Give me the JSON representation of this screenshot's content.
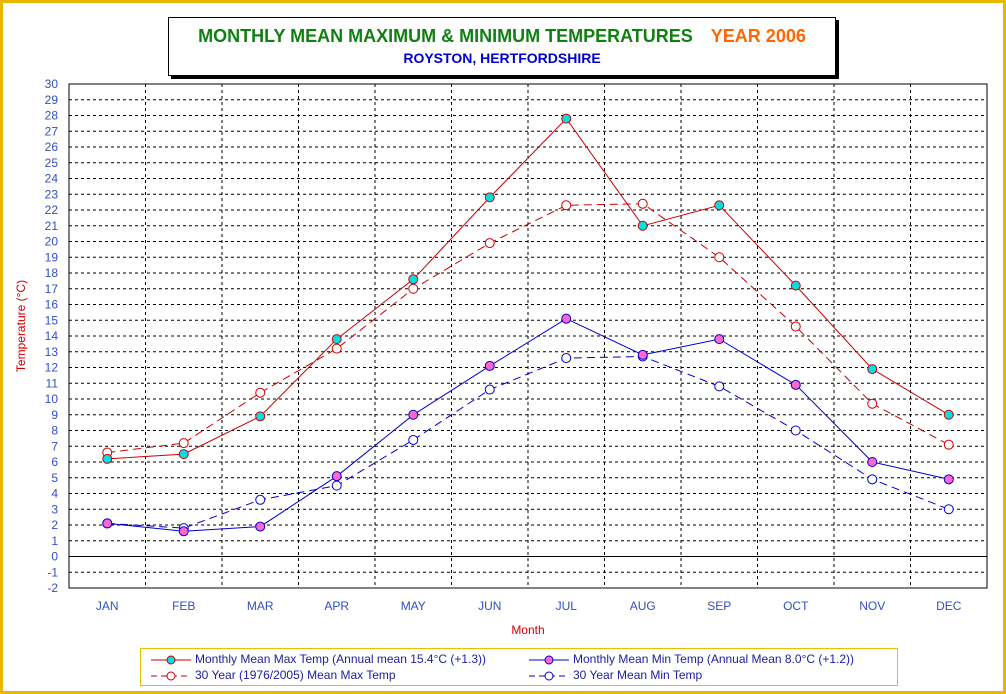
{
  "title": {
    "main": "MONTHLY  MEAN MAXIMUM & MINIMUM TEMPERATURES",
    "year": "YEAR 2006",
    "subtitle": "ROYSTON, HERTFORDSHIRE"
  },
  "colors": {
    "title_main": "#108010",
    "title_year": "#ff6600",
    "subtitle": "#0000cc",
    "max_series": "#cc0000",
    "min_series": "#0000cc",
    "marker_cyan": "#00e0e0",
    "marker_pink": "#ff66cc",
    "frame": "#e8b800",
    "tick_labels": "#3050c0",
    "axis_titles": "#cc0000"
  },
  "chart_data": {
    "type": "line",
    "xlabel": "Month",
    "ylabel": "Temperature (°C)",
    "ylim": [
      -2,
      30
    ],
    "y_ticks": [
      -2,
      -1,
      0,
      1,
      2,
      3,
      4,
      5,
      6,
      7,
      8,
      9,
      10,
      11,
      12,
      13,
      14,
      15,
      16,
      17,
      18,
      19,
      20,
      21,
      22,
      23,
      24,
      25,
      26,
      27,
      28,
      29,
      30
    ],
    "categories": [
      "JAN",
      "FEB",
      "MAR",
      "APR",
      "MAY",
      "JUN",
      "JUL",
      "AUG",
      "SEP",
      "OCT",
      "NOV",
      "DEC"
    ],
    "grid": true,
    "legend_position": "bottom",
    "series": [
      {
        "name": "Monthly Mean Max Temp (Annual mean 15.4°C (+1.3))",
        "style": "solid",
        "color": "#cc0000",
        "marker": "filled-cyan",
        "values": [
          6.2,
          6.5,
          8.9,
          13.8,
          17.6,
          22.8,
          27.8,
          21.0,
          22.3,
          17.2,
          11.9,
          9.0
        ]
      },
      {
        "name": "Monthly Mean Min Temp (Annual Mean 8.0°C (+1.2))",
        "style": "solid",
        "color": "#0000cc",
        "marker": "filled-pink",
        "values": [
          2.1,
          1.6,
          1.9,
          5.1,
          9.0,
          12.1,
          15.1,
          12.8,
          13.8,
          10.9,
          6.0,
          4.9
        ]
      },
      {
        "name": "30 Year (1976/2005) Mean Max Temp",
        "style": "dashed",
        "color": "#cc0000",
        "marker": "open-red",
        "values": [
          6.6,
          7.2,
          10.4,
          13.2,
          17.0,
          19.9,
          22.3,
          22.4,
          19.0,
          14.6,
          9.7,
          7.1
        ]
      },
      {
        "name": "30 Year Mean Min Temp",
        "style": "dashed",
        "color": "#0000cc",
        "marker": "open-blue",
        "values": [
          2.1,
          1.8,
          3.6,
          4.5,
          7.4,
          10.6,
          12.6,
          12.7,
          10.8,
          8.0,
          4.9,
          3.0
        ]
      }
    ]
  },
  "legend": {
    "items": [
      "Monthly Mean Max Temp (Annual mean 15.4°C (+1.3))",
      "Monthly Mean Min Temp (Annual Mean 8.0°C (+1.2))",
      "30 Year (1976/2005) Mean Max Temp",
      "30 Year Mean Min Temp"
    ]
  }
}
